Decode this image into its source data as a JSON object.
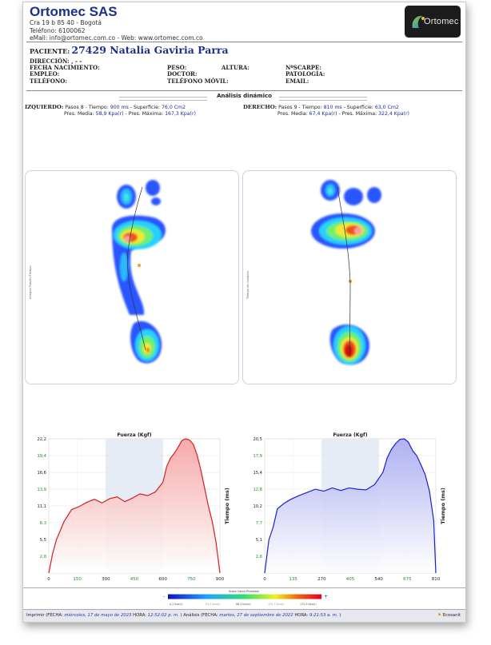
{
  "company": {
    "name": "Ortomec SAS",
    "address": "Cra 19 b 85 40 - Bogotá",
    "phone": "Teléfono: 6100062",
    "contact": "eMail: info@ortomec.com.co - Web: www.ortomec.com.co",
    "logo_text": "Ortomec"
  },
  "patient": {
    "label": "PACIENTE:",
    "name": "27429 Natalia Gaviria Parra",
    "address_label": "DIRECCIÓN: ,   -   -",
    "birth_label": "FECHA NACIMIENTO:",
    "weight_label": "PESO:",
    "height_label": "ALTURA:",
    "shoe_label": "NºSCARPE:",
    "job_label": "EMPLEO:",
    "doctor_label": "DOCTOR:",
    "pathology_label": "PATOLOGÍA:",
    "phone_label": "TELÉFONO:",
    "mobile_label": "TELÉFONO MÓVIL:",
    "email_label": "EMAIL:"
  },
  "analysis_title": "Análisis dinámico",
  "left_stats": {
    "label": "IZQUIERDO:",
    "line1": "Pasos 8 - Tiempo:",
    "time": "900 ms",
    "sep1": " - Superficie:",
    "surface": "76,0 Cm2",
    "line2a": "Pres. Media:",
    "mean": "58,9 Kpa(r)",
    "line2b": " - Pres. Máxima:",
    "max": "167,3 Kpa(r)"
  },
  "right_stats": {
    "label": "DERECHO:",
    "line1": "Pasos 9 - Tiempo:",
    "time": "810 ms",
    "sep1": " - Superficie:",
    "surface": "63,0 Cm2",
    "line2a": "Pres. Media:",
    "mean": "67,4 Kpa(r)",
    "line2b": " - Pres. Máxima:",
    "max": "322,4 Kpa(r)"
  },
  "footprint_side_labels": {
    "left": "Integral Presión/Tiempo",
    "right": "Tiempo de contacto"
  },
  "charts": [
    {
      "title": "Fuerza (Kgf)",
      "ylabel": "Tiempo (ms)",
      "color": "#d42020",
      "fill": "#f5a0a0",
      "yticks": [
        "22,2",
        "19,4",
        "16,6",
        "13,9",
        "11,1",
        "8,3",
        "5,5",
        "2,8"
      ],
      "xticks": [
        "0",
        "150",
        "300",
        "450",
        "600",
        "750",
        "900"
      ],
      "xmax": 900,
      "ymax": 22.2,
      "x": [
        0,
        20,
        40,
        80,
        120,
        160,
        200,
        240,
        280,
        320,
        360,
        400,
        440,
        480,
        520,
        560,
        600,
        620,
        640,
        660,
        680,
        700,
        720,
        740,
        760,
        780,
        800,
        820,
        840,
        860,
        880,
        900
      ],
      "y": [
        0,
        3.2,
        5.5,
        8.5,
        10.5,
        11.0,
        11.7,
        12.2,
        11.6,
        12.3,
        12.6,
        11.8,
        12.4,
        13.1,
        12.8,
        13.4,
        15.0,
        17.6,
        19.0,
        19.8,
        20.8,
        21.9,
        22.2,
        22.0,
        21.3,
        19.5,
        17.0,
        14.0,
        11.0,
        8.5,
        5.0,
        0
      ],
      "band_from": 300,
      "band_to": 600
    },
    {
      "title": "Fuerza (Kgf)",
      "ylabel": "Tiempo (ms)",
      "color": "#1a20d0",
      "fill": "#a7a8f0",
      "yticks": [
        "20,5",
        "17,9",
        "15,4",
        "12,8",
        "10,2",
        "7,7",
        "5,1",
        "2,6"
      ],
      "xticks": [
        "0",
        "135",
        "270",
        "405",
        "540",
        "675",
        "810"
      ],
      "xmax": 810,
      "ymax": 20.5,
      "x": [
        0,
        20,
        40,
        60,
        90,
        120,
        160,
        200,
        240,
        280,
        320,
        360,
        400,
        440,
        480,
        520,
        560,
        580,
        600,
        620,
        640,
        660,
        680,
        700,
        720,
        740,
        760,
        780,
        800,
        810
      ],
      "y": [
        0,
        5.1,
        7.0,
        9.8,
        10.6,
        11.2,
        11.8,
        12.3,
        12.8,
        12.5,
        13.0,
        12.6,
        13.0,
        12.8,
        12.7,
        13.5,
        15.4,
        17.6,
        18.9,
        19.8,
        20.4,
        20.5,
        20.0,
        18.7,
        17.9,
        16.5,
        15.0,
        12.5,
        8.0,
        0
      ],
      "band_from": 270,
      "band_to": 540
    }
  ],
  "scale": {
    "title": "Scala Colori Pressioni",
    "minus": "-",
    "plus": "+",
    "labels": [
      "0,2 Kpa(r)",
      "43,3 Kpa(r)",
      "86,5 Kpa(r)",
      "129,7 Kpa(r)",
      "172,9 Kpa(r)"
    ]
  },
  "footer": {
    "print_label": "Imprimir (FECHA:",
    "print_date": "miércoles, 17 de mayo de 2023",
    "hour_label": "HORA:",
    "print_time": "12:52:02 p. m.",
    "analysis_label": ")  Análisis (FECHA:",
    "analysis_date": "martes, 27 de septiembre de 2022",
    "hour_label2": "HORA:",
    "analysis_time": "9:21:53 a. m.",
    "close": ")",
    "brand": "Ecosanit"
  },
  "colors": {
    "brand_blue": "#1a2f8e",
    "value_blue": "#1a2f8e",
    "left_curve": "#d42020",
    "right_curve": "#1a20d0"
  }
}
